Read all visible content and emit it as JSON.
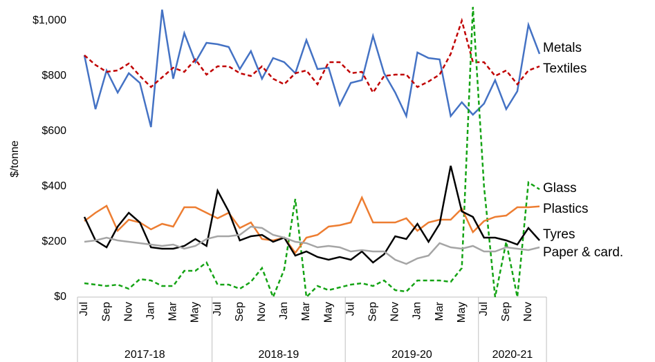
{
  "chart_data": {
    "type": "line",
    "ylabel": "$/tonne",
    "categories": [
      "Jul",
      null,
      "Sep",
      null,
      "Nov",
      null,
      "Jan",
      null,
      "Mar",
      null,
      "May",
      null,
      "Jul",
      null,
      "Sep",
      null,
      "Nov",
      null,
      "Jan",
      null,
      "Mar",
      null,
      "May",
      null,
      "Jul",
      null,
      "Sep",
      null,
      "Nov",
      null,
      "Jan",
      null,
      "Mar",
      null,
      "May",
      null,
      "Jul",
      null,
      "Sep",
      null,
      "Nov",
      null
    ],
    "groups": [
      {
        "label": "2017-18",
        "span": 12
      },
      {
        "label": "2018-19",
        "span": 12
      },
      {
        "label": "2019-20",
        "span": 12
      },
      {
        "label": "2020-21",
        "span": 6
      }
    ],
    "ylim": [
      0,
      1000
    ],
    "yticks": [
      {
        "value": 0,
        "label": "$0"
      },
      {
        "value": 200,
        "label": "$200"
      },
      {
        "value": 400,
        "label": "$400"
      },
      {
        "value": 600,
        "label": "$600"
      },
      {
        "value": 800,
        "label": "$800"
      },
      {
        "value": 1000,
        "label": "$1,000"
      }
    ],
    "series": [
      {
        "name": "Metals",
        "color": "#4472c4",
        "style": "solid",
        "values": [
          875,
          680,
          820,
          740,
          810,
          775,
          615,
          1040,
          790,
          955,
          850,
          920,
          915,
          905,
          825,
          890,
          790,
          865,
          850,
          810,
          930,
          825,
          830,
          695,
          775,
          785,
          945,
          810,
          740,
          655,
          885,
          865,
          860,
          655,
          705,
          660,
          700,
          785,
          680,
          745,
          985,
          880
        ]
      },
      {
        "name": "Textiles",
        "color": "#c00000",
        "style": "dashed",
        "values": [
          875,
          840,
          815,
          820,
          845,
          800,
          760,
          795,
          830,
          815,
          860,
          805,
          835,
          835,
          810,
          800,
          835,
          790,
          770,
          810,
          820,
          770,
          850,
          850,
          810,
          815,
          740,
          800,
          805,
          805,
          760,
          780,
          805,
          880,
          1000,
          850,
          850,
          800,
          820,
          770,
          820,
          835
        ]
      },
      {
        "name": "Glass",
        "color": "#14a314",
        "style": "dashed",
        "values": [
          50,
          45,
          40,
          45,
          30,
          65,
          60,
          40,
          40,
          95,
          95,
          125,
          45,
          45,
          30,
          55,
          105,
          0,
          100,
          355,
          0,
          40,
          25,
          35,
          45,
          50,
          40,
          60,
          25,
          20,
          60,
          60,
          60,
          55,
          105,
          1050,
          400,
          0,
          200,
          0,
          415,
          390
        ]
      },
      {
        "name": "Plastics",
        "color": "#ed7d31",
        "style": "solid",
        "values": [
          275,
          305,
          330,
          240,
          280,
          270,
          245,
          265,
          255,
          325,
          325,
          305,
          285,
          305,
          250,
          270,
          210,
          205,
          215,
          160,
          215,
          225,
          255,
          260,
          270,
          360,
          270,
          270,
          270,
          285,
          240,
          270,
          280,
          280,
          320,
          235,
          275,
          290,
          295,
          325,
          325,
          328
        ]
      },
      {
        "name": "Tyres",
        "color": "#000000",
        "style": "solid",
        "values": [
          290,
          205,
          180,
          255,
          305,
          270,
          180,
          175,
          175,
          185,
          210,
          185,
          385,
          310,
          205,
          220,
          225,
          200,
          215,
          150,
          165,
          145,
          135,
          145,
          135,
          165,
          125,
          155,
          220,
          210,
          265,
          200,
          265,
          475,
          310,
          290,
          215,
          215,
          205,
          190,
          250,
          205
        ]
      },
      {
        "name": "Paper & card.",
        "color": "#a5a5a5",
        "style": "solid",
        "values": [
          200,
          205,
          215,
          205,
          200,
          195,
          190,
          185,
          190,
          175,
          185,
          210,
          220,
          220,
          225,
          255,
          250,
          225,
          215,
          200,
          195,
          180,
          185,
          180,
          165,
          170,
          165,
          165,
          135,
          120,
          140,
          150,
          195,
          180,
          175,
          185,
          165,
          165,
          180,
          175,
          170,
          180
        ]
      }
    ]
  }
}
